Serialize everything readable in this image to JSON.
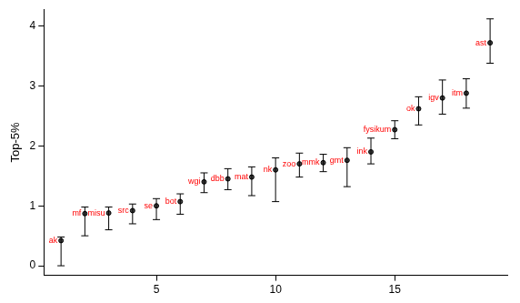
{
  "chart_data": {
    "type": "scatter",
    "y_label": "Top-5%",
    "x": [
      1,
      2,
      3,
      4,
      5,
      6,
      7,
      8,
      9,
      10,
      11,
      12,
      13,
      14,
      15,
      16,
      17,
      18,
      19
    ],
    "labels": [
      "ak",
      "mf",
      "misu",
      "src",
      "se",
      "bot",
      "wgi",
      "dbb",
      "mat",
      "nk",
      "zoo",
      "mmk",
      "gmt",
      "ink",
      "fysikum",
      "ok",
      "igv",
      "itm",
      "ast"
    ],
    "values": [
      0.42,
      0.87,
      0.88,
      0.92,
      1.0,
      1.07,
      1.4,
      1.45,
      1.48,
      1.6,
      1.7,
      1.72,
      1.76,
      1.9,
      2.27,
      2.62,
      2.8,
      2.88,
      3.72
    ],
    "error_low": [
      0.0,
      0.5,
      0.6,
      0.7,
      0.77,
      0.86,
      1.22,
      1.27,
      1.17,
      1.07,
      1.48,
      1.57,
      1.32,
      1.7,
      2.12,
      2.35,
      2.53,
      2.63,
      3.38
    ],
    "error_high": [
      0.48,
      0.98,
      0.98,
      1.03,
      1.12,
      1.2,
      1.55,
      1.62,
      1.65,
      1.8,
      1.88,
      1.86,
      1.97,
      2.13,
      2.42,
      2.82,
      3.1,
      3.12,
      4.12
    ],
    "color": "#000000",
    "xlim": [
      0.28,
      19.72
    ],
    "xticks": [
      5,
      10,
      15
    ],
    "ylim": [
      -0.16,
      4.28
    ],
    "yticks": [
      0,
      1,
      2,
      3,
      4
    ],
    "grid": false
  }
}
